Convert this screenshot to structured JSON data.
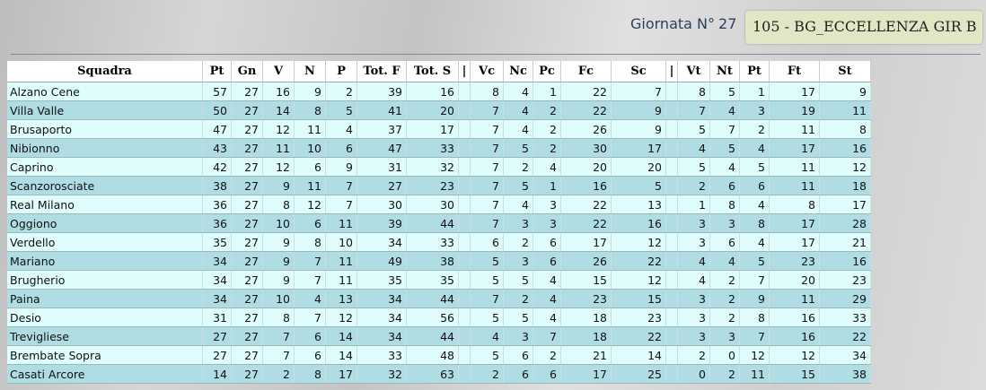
{
  "header": {
    "giornata_label": "Giornata N°",
    "giornata_number": "27",
    "league": "105 - BG_ECCELLENZA GIR B"
  },
  "table": {
    "columns": [
      "Squadra",
      "Pt",
      "Gn",
      "V",
      "N",
      "P",
      "Tot. F",
      "Tot. S",
      "|",
      "Vc",
      "Nc",
      "Pc",
      "Fc",
      "Sc",
      "|",
      "Vt",
      "Nt",
      "Pt",
      "Ft",
      "St"
    ],
    "rows": [
      [
        "Alzano Cene",
        57,
        27,
        16,
        9,
        2,
        39,
        16,
        8,
        4,
        1,
        22,
        7,
        8,
        5,
        1,
        17,
        9
      ],
      [
        "Villa Valle",
        50,
        27,
        14,
        8,
        5,
        41,
        20,
        7,
        4,
        2,
        22,
        9,
        7,
        4,
        3,
        19,
        11
      ],
      [
        "Brusaporto",
        47,
        27,
        12,
        11,
        4,
        37,
        17,
        7,
        4,
        2,
        26,
        9,
        5,
        7,
        2,
        11,
        8
      ],
      [
        "Nibionno",
        43,
        27,
        11,
        10,
        6,
        47,
        33,
        7,
        5,
        2,
        30,
        17,
        4,
        5,
        4,
        17,
        16
      ],
      [
        "Caprino",
        42,
        27,
        12,
        6,
        9,
        31,
        32,
        7,
        2,
        4,
        20,
        20,
        5,
        4,
        5,
        11,
        12
      ],
      [
        "Scanzorosciate",
        38,
        27,
        9,
        11,
        7,
        27,
        23,
        7,
        5,
        1,
        16,
        5,
        2,
        6,
        6,
        11,
        18
      ],
      [
        "Real Milano",
        36,
        27,
        8,
        12,
        7,
        30,
        30,
        7,
        4,
        3,
        22,
        13,
        1,
        8,
        4,
        8,
        17
      ],
      [
        "Oggiono",
        36,
        27,
        10,
        6,
        11,
        39,
        44,
        7,
        3,
        3,
        22,
        16,
        3,
        3,
        8,
        17,
        28
      ],
      [
        "Verdello",
        35,
        27,
        9,
        8,
        10,
        34,
        33,
        6,
        2,
        6,
        17,
        12,
        3,
        6,
        4,
        17,
        21
      ],
      [
        "Mariano",
        34,
        27,
        9,
        7,
        11,
        49,
        38,
        5,
        3,
        6,
        26,
        22,
        4,
        4,
        5,
        23,
        16
      ],
      [
        "Brugherio",
        34,
        27,
        9,
        7,
        11,
        35,
        35,
        5,
        5,
        4,
        15,
        12,
        4,
        2,
        7,
        20,
        23
      ],
      [
        "Paina",
        34,
        27,
        10,
        4,
        13,
        34,
        44,
        7,
        2,
        4,
        23,
        15,
        3,
        2,
        9,
        11,
        29
      ],
      [
        "Desio",
        31,
        27,
        8,
        7,
        12,
        34,
        56,
        5,
        5,
        4,
        18,
        23,
        3,
        2,
        8,
        16,
        33
      ],
      [
        "Trevigliese",
        27,
        27,
        7,
        6,
        14,
        34,
        44,
        4,
        3,
        7,
        18,
        22,
        3,
        3,
        7,
        16,
        22
      ],
      [
        "Brembate Sopra",
        27,
        27,
        7,
        6,
        14,
        33,
        48,
        5,
        6,
        2,
        21,
        14,
        2,
        0,
        12,
        12,
        34
      ],
      [
        "Casati Arcore",
        14,
        27,
        2,
        8,
        17,
        32,
        63,
        2,
        6,
        6,
        17,
        25,
        0,
        2,
        11,
        15,
        38
      ]
    ]
  },
  "colors": {
    "row_odd": "#dffdfd",
    "row_even": "#afdde3",
    "league_box": "#e3e6c5"
  }
}
